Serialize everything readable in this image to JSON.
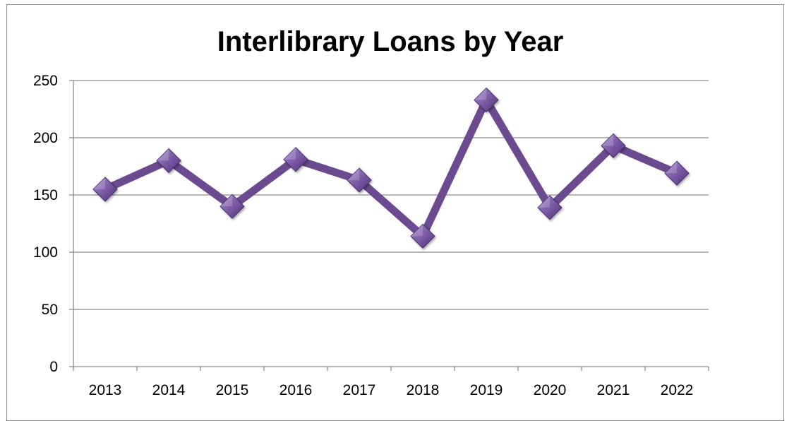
{
  "chart_data": {
    "type": "line",
    "title": "Interlibrary Loans by Year",
    "xlabel": "",
    "ylabel": "",
    "categories": [
      "2013",
      "2014",
      "2015",
      "2016",
      "2017",
      "2018",
      "2019",
      "2020",
      "2021",
      "2022"
    ],
    "series": [
      {
        "values": [
          155,
          180,
          140,
          181,
          163,
          114,
          233,
          139,
          193,
          169
        ],
        "color": "#6b4a8f",
        "marker": "diamond",
        "marker_color": "#7b5aa6"
      }
    ],
    "ylim": [
      0,
      250
    ],
    "yticks": [
      0,
      50,
      100,
      150,
      200,
      250
    ],
    "ytick_labels": [
      "0",
      "50",
      "100",
      "150",
      "200",
      "250"
    ],
    "grid": true,
    "grid_color": "#8c8c8c",
    "legend": "none"
  }
}
